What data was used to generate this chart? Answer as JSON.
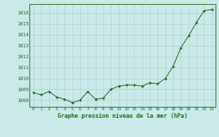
{
  "x": [
    0,
    1,
    2,
    3,
    4,
    5,
    6,
    7,
    8,
    9,
    10,
    11,
    12,
    13,
    14,
    15,
    16,
    17,
    18,
    19,
    20,
    21,
    22,
    23
  ],
  "y": [
    1008.7,
    1008.5,
    1008.8,
    1008.3,
    1008.1,
    1007.8,
    1008.0,
    1008.8,
    1008.1,
    1008.2,
    1009.0,
    1009.3,
    1009.4,
    1009.4,
    1009.3,
    1009.6,
    1009.5,
    1010.0,
    1011.1,
    1012.8,
    1013.9,
    1015.1,
    1016.2,
    1016.3
  ],
  "line_color": "#1a6e1a",
  "marker_color": "#1a6e1a",
  "bg_color": "#caeaea",
  "grid_color": "#b0d0d0",
  "title": "Graphe pression niveau de la mer (hPa)",
  "ylabel_ticks": [
    1008,
    1009,
    1010,
    1011,
    1012,
    1013,
    1014,
    1015,
    1016
  ],
  "ylim": [
    1007.4,
    1016.8
  ],
  "xlim": [
    -0.5,
    23.5
  ],
  "xticks": [
    0,
    1,
    2,
    3,
    4,
    5,
    6,
    7,
    8,
    9,
    10,
    11,
    12,
    13,
    14,
    15,
    16,
    17,
    18,
    19,
    20,
    21,
    22,
    23
  ]
}
